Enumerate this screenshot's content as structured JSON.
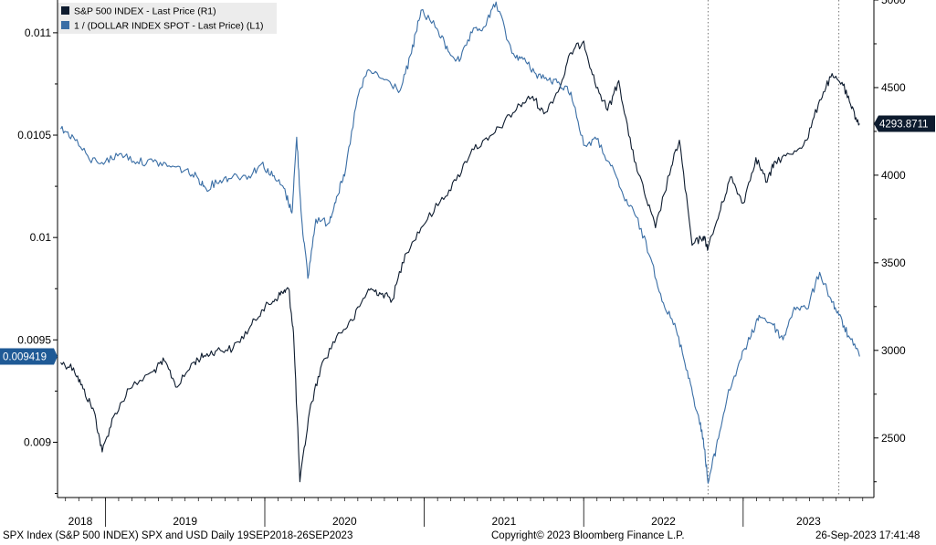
{
  "chart_data": {
    "type": "line",
    "title": "",
    "xlabel": "",
    "x_ticks": [
      "2018",
      "2019",
      "2020",
      "2021",
      "2022",
      "2023"
    ],
    "left_axis": {
      "range": [
        0.00873,
        0.01116
      ],
      "ticks": [
        0.009,
        0.0095,
        0.01,
        0.0105,
        0.011
      ],
      "tick_labels": [
        "0.009",
        "0.0095",
        "0.01",
        "0.0105",
        "0.011"
      ]
    },
    "right_axis": {
      "range": [
        2160,
        5000
      ],
      "ticks": [
        2500,
        3000,
        3500,
        4000,
        4500,
        5000
      ],
      "tick_labels": [
        "2500",
        "3000",
        "3500",
        "4000",
        "4500",
        "5000"
      ]
    },
    "series": [
      {
        "name": "S&P 500 INDEX - Last Price (R1)",
        "axis": "right",
        "color": "#0d1b2e",
        "x": [
          2018.72,
          2018.8,
          2018.86,
          2018.93,
          2018.98,
          2019.05,
          2019.15,
          2019.3,
          2019.37,
          2019.45,
          2019.55,
          2019.62,
          2019.7,
          2019.8,
          2019.9,
          2019.98,
          2020.05,
          2020.11,
          2020.15,
          2020.18,
          2020.22,
          2020.28,
          2020.35,
          2020.45,
          2020.55,
          2020.65,
          2020.72,
          2020.8,
          2020.88,
          2020.98,
          2021.1,
          2021.2,
          2021.3,
          2021.4,
          2021.5,
          2021.6,
          2021.68,
          2021.75,
          2021.85,
          2021.92,
          2022.0,
          2022.07,
          2022.15,
          2022.22,
          2022.3,
          2022.38,
          2022.45,
          2022.55,
          2022.6,
          2022.68,
          2022.75,
          2022.78,
          2022.85,
          2022.92,
          2023.0,
          2023.08,
          2023.15,
          2023.2,
          2023.3,
          2023.4,
          2023.48,
          2023.55,
          2023.62,
          2023.68,
          2023.73
        ],
        "values": [
          2930,
          2900,
          2780,
          2650,
          2420,
          2620,
          2780,
          2880,
          2940,
          2790,
          2930,
          2970,
          3000,
          3010,
          3120,
          3230,
          3280,
          3330,
          3350,
          3100,
          2250,
          2650,
          2900,
          3080,
          3170,
          3350,
          3330,
          3290,
          3550,
          3700,
          3850,
          3970,
          4150,
          4200,
          4300,
          4400,
          4450,
          4350,
          4500,
          4700,
          4766,
          4530,
          4370,
          4540,
          4150,
          3900,
          3700,
          4050,
          4200,
          3600,
          3650,
          3585,
          3780,
          3990,
          3840,
          4100,
          3960,
          4080,
          4120,
          4200,
          4430,
          4560,
          4530,
          4380,
          4294
        ]
      },
      {
        "name": "1 / (DOLLAR INDEX SPOT - Last Price) (L1)",
        "axis": "left",
        "color": "#3a6ea5",
        "x": [
          2018.72,
          2018.8,
          2018.9,
          2019.0,
          2019.1,
          2019.2,
          2019.3,
          2019.4,
          2019.5,
          2019.58,
          2019.63,
          2019.72,
          2019.8,
          2019.9,
          2019.98,
          2020.05,
          2020.12,
          2020.17,
          2020.2,
          2020.23,
          2020.27,
          2020.32,
          2020.4,
          2020.45,
          2020.5,
          2020.58,
          2020.65,
          2020.75,
          2020.85,
          2020.92,
          2020.98,
          2021.08,
          2021.15,
          2021.22,
          2021.3,
          2021.38,
          2021.45,
          2021.55,
          2021.62,
          2021.7,
          2021.78,
          2021.85,
          2021.92,
          2022.0,
          2022.08,
          2022.17,
          2022.25,
          2022.33,
          2022.42,
          2022.5,
          2022.58,
          2022.65,
          2022.71,
          2022.75,
          2022.78,
          2022.83,
          2022.9,
          2022.98,
          2023.05,
          2023.1,
          2023.18,
          2023.25,
          2023.32,
          2023.4,
          2023.48,
          2023.55,
          2023.6,
          2023.66,
          2023.73
        ],
        "values": [
          0.01053,
          0.01049,
          0.01038,
          0.01037,
          0.01041,
          0.01037,
          0.01037,
          0.01035,
          0.01033,
          0.01029,
          0.01024,
          0.01028,
          0.0103,
          0.0103,
          0.01036,
          0.0103,
          0.01024,
          0.01012,
          0.01049,
          0.0101,
          0.0098,
          0.01009,
          0.01007,
          0.0102,
          0.0103,
          0.01068,
          0.01082,
          0.01077,
          0.01072,
          0.0109,
          0.01111,
          0.01102,
          0.01091,
          0.01086,
          0.011,
          0.01103,
          0.01115,
          0.0109,
          0.01087,
          0.0108,
          0.01077,
          0.01075,
          0.01071,
          0.01045,
          0.01048,
          0.01035,
          0.0102,
          0.0101,
          0.0099,
          0.00968,
          0.00955,
          0.00935,
          0.00915,
          0.00902,
          0.0088,
          0.00897,
          0.00922,
          0.0094,
          0.00952,
          0.00962,
          0.00958,
          0.0095,
          0.00966,
          0.00965,
          0.00983,
          0.0097,
          0.00962,
          0.00952,
          0.009419
        ]
      }
    ],
    "last_values": {
      "right": "4293.8711",
      "left": "0.009419"
    },
    "vertical_markers_x": [
      2022.78,
      2023.6
    ],
    "legend_position": "top-left"
  },
  "footer": {
    "left": "SPX Index (S&P 500 INDEX) SPX and USD  Daily 19SEP2018-26SEP2023",
    "center": "Copyright© 2023 Bloomberg Finance L.P.",
    "right": "26-Sep-2023 17:41:48"
  },
  "colors": {
    "spx": "#0d1b2e",
    "usd": "#3a6ea5",
    "legend_bg": "#ececec"
  }
}
